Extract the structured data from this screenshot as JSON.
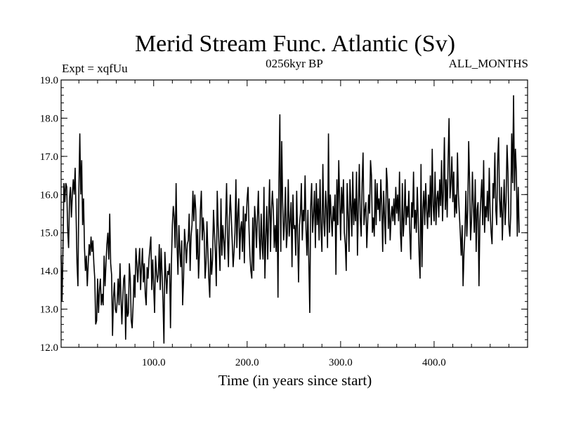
{
  "chart_data": {
    "type": "line",
    "title": "Merid Stream Func. Atlantic (Sv)",
    "subtitle_left": "Expt = xqfUu",
    "subtitle_center": "0256kyr BP",
    "subtitle_right": "ALL_MONTHS",
    "xlabel": "Time (in years since start)",
    "ylabel": "",
    "xlim": [
      1,
      500
    ],
    "ylim": [
      12.0,
      19.0
    ],
    "x_ticks": [
      100,
      200,
      300,
      400
    ],
    "x_tick_labels": [
      "100.0",
      "200.0",
      "300.0",
      "400.0"
    ],
    "y_ticks": [
      12,
      13,
      14,
      15,
      16,
      17,
      18,
      19
    ],
    "y_tick_labels": [
      "12.0",
      "13.0",
      "14.0",
      "15.0",
      "16.0",
      "17.0",
      "18.0",
      "19.0"
    ],
    "grid": false,
    "series": [
      {
        "name": "Merid Stream Func. Atlantic",
        "color": "#000000",
        "x_start": 1,
        "x_step": 1,
        "values": [
          14.4,
          13.2,
          14.6,
          16.3,
          15.8,
          16.3,
          16.2,
          15.1,
          14.6,
          15.9,
          16.2,
          15.4,
          16.0,
          16.4,
          16.0,
          16.7,
          15.5,
          14.2,
          13.6,
          16.1,
          17.6,
          16.0,
          16.9,
          15.2,
          15.9,
          14.6,
          14.0,
          14.4,
          13.6,
          14.2,
          14.7,
          14.4,
          14.9,
          14.5,
          14.8,
          14.2,
          13.8,
          12.6,
          12.7,
          13.8,
          12.9,
          13.5,
          13.8,
          13.1,
          13.4,
          13.1,
          14.4,
          13.6,
          14.2,
          14.7,
          15.0,
          14.3,
          15.5,
          14.2,
          13.9,
          12.3,
          13.3,
          13.7,
          13.0,
          12.9,
          13.2,
          13.8,
          13.1,
          14.2,
          13.3,
          12.6,
          13.3,
          13.8,
          13.9,
          12.2,
          13.4,
          12.8,
          12.9,
          14.2,
          13.8,
          12.7,
          12.5,
          13.1,
          13.9,
          13.3,
          14.6,
          14.2,
          13.7,
          14.2,
          14.6,
          13.5,
          14.1,
          14.6,
          13.7,
          14.2,
          13.4,
          13.1,
          14.1,
          13.8,
          14.3,
          14.6,
          14.9,
          13.5,
          14.3,
          13.6,
          12.9,
          14.4,
          14.0,
          13.7,
          13.9,
          14.7,
          13.5,
          14.6,
          13.9,
          13.2,
          12.1,
          14.5,
          13.9,
          13.4,
          14.0,
          13.9,
          14.2,
          12.5,
          14.2,
          15.2,
          15.7,
          15.4,
          14.6,
          16.3,
          14.7,
          13.9,
          15.2,
          14.5,
          14.1,
          14.8,
          13.1,
          13.8,
          15.1,
          14.7,
          14.2,
          14.7,
          14.8,
          15.5,
          14.0,
          14.9,
          15.2,
          16.1,
          15.3,
          16.0,
          15.6,
          14.3,
          15.1,
          13.8,
          14.5,
          15.6,
          16.1,
          14.8,
          15.4,
          15.0,
          13.8,
          14.2,
          15.3,
          14.5,
          13.8,
          13.3,
          14.6,
          13.9,
          14.3,
          15.6,
          15.0,
          14.5,
          13.6,
          16.1,
          15.2,
          14.6,
          14.0,
          15.9,
          14.4,
          15.2,
          14.8,
          14.3,
          15.3,
          16.3,
          14.9,
          14.1,
          15.4,
          16.0,
          15.4,
          14.8,
          14.1,
          14.5,
          15.0,
          16.4,
          14.6,
          15.5,
          15.9,
          14.3,
          15.1,
          15.3,
          14.5,
          15.7,
          14.2,
          15.5,
          15.3,
          15.9,
          16.2,
          15.1,
          14.4,
          14.0,
          13.8,
          15.4,
          14.0,
          15.7,
          15.3,
          14.6,
          15.4,
          16.1,
          14.9,
          14.3,
          15.5,
          14.7,
          14.3,
          16.2,
          13.8,
          14.9,
          15.7,
          14.3,
          15.4,
          16.4,
          14.5,
          15.6,
          16.1,
          15.6,
          14.6,
          15.2,
          14.5,
          15.9,
          13.3,
          16.3,
          18.1,
          14.5,
          17.4,
          15.8,
          14.8,
          15.3,
          16.2,
          14.6,
          15.0,
          16.4,
          14.9,
          15.3,
          15.8,
          14.1,
          16.0,
          15.1,
          15.2,
          14.4,
          16.1,
          14.9,
          13.7,
          15.2,
          15.5,
          16.3,
          14.8,
          15.6,
          15.3,
          16.5,
          15.1,
          14.4,
          15.6,
          14.2,
          12.9,
          15.7,
          16.3,
          15.0,
          15.5,
          16.1,
          14.6,
          16.3,
          15.2,
          15.9,
          14.8,
          16.4,
          15.1,
          14.5,
          16.8,
          15.3,
          14.9,
          16.1,
          15.6,
          14.6,
          17.6,
          15.0,
          16.0,
          15.4,
          14.9,
          15.7,
          15.3,
          16.0,
          13.9,
          16.4,
          15.2,
          16.9,
          15.8,
          14.8,
          16.2,
          15.5,
          16.4,
          15.0,
          14.7,
          14.0,
          16.3,
          15.5,
          14.5,
          16.4,
          15.7,
          14.9,
          16.6,
          15.2,
          15.9,
          15.3,
          16.6,
          14.4,
          15.7,
          16.8,
          15.4,
          14.9,
          16.3,
          17.1,
          15.2,
          15.6,
          15.8,
          14.6,
          15.3,
          16.0,
          15.5,
          16.9,
          16.5,
          15.0,
          15.4,
          14.9,
          16.4,
          15.2,
          16.3,
          15.6,
          15.9,
          15.3,
          16.4,
          15.7,
          14.5,
          16.1,
          15.4,
          14.7,
          16.7,
          16.3,
          15.1,
          15.9,
          14.8,
          15.4,
          15.7,
          15.3,
          15.9,
          15.2,
          16.2,
          15.5,
          16.0,
          15.3,
          16.6,
          15.0,
          14.5,
          16.3,
          14.9,
          15.4,
          16.4,
          15.2,
          15.7,
          15.4,
          16.1,
          15.0,
          14.3,
          15.8,
          15.4,
          16.6,
          15.1,
          15.6,
          15.0,
          16.2,
          15.4,
          14.4,
          13.8,
          16.8,
          14.1,
          15.6,
          16.1,
          15.2,
          16.3,
          15.6,
          15.1,
          16.0,
          15.4,
          16.5,
          15.2,
          17.2,
          15.7,
          15.3,
          16.6,
          15.2,
          15.9,
          16.1,
          15.4,
          16.4,
          15.7,
          16.9,
          15.3,
          16.1,
          17.5,
          15.6,
          16.4,
          15.4,
          16.9,
          18.0,
          15.9,
          16.3,
          17.0,
          15.8,
          16.6,
          15.4,
          16.0,
          15.5,
          17.1,
          16.0,
          15.5,
          15.0,
          14.4,
          15.2,
          13.6,
          14.5,
          15.0,
          16.1,
          14.9,
          15.6,
          17.4,
          16.3,
          14.8,
          15.3,
          16.6,
          15.7,
          15.0,
          16.4,
          14.5,
          15.6,
          15.8,
          13.6,
          15.3,
          15.9,
          16.4,
          15.2,
          16.9,
          15.0,
          15.7,
          15.4,
          16.1,
          15.3,
          16.7,
          15.5,
          15.0,
          14.7,
          16.3,
          15.9,
          17.1,
          15.6,
          15.2,
          16.9,
          17.5,
          15.9,
          15.4,
          16.2,
          14.8,
          15.6,
          16.4,
          15.2,
          15.8,
          17.3,
          16.6,
          15.2,
          14.9,
          15.5,
          17.6,
          16.3,
          18.6,
          16.1,
          17.2,
          16.6,
          14.9,
          16.2,
          15.0
        ]
      }
    ]
  }
}
